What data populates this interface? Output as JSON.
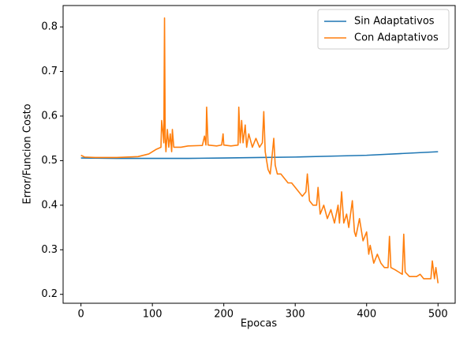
{
  "chart_data": {
    "type": "line",
    "xlabel": "Epocas",
    "ylabel": "Error/Funcion Costo",
    "xlim": [
      -25,
      524
    ],
    "ylim": [
      0.18,
      0.848
    ],
    "xticks": [
      0,
      100,
      200,
      300,
      400,
      500
    ],
    "yticks": [
      0.2,
      0.3,
      0.4,
      0.5,
      0.6,
      0.7,
      0.8
    ],
    "legend": "upper right",
    "grid": false,
    "series": [
      {
        "name": "Sin Adaptativos",
        "color": "#1f77b4",
        "x": [
          0,
          50,
          100,
          150,
          200,
          250,
          300,
          350,
          400,
          450,
          500
        ],
        "values": [
          0.506,
          0.505,
          0.505,
          0.505,
          0.506,
          0.507,
          0.508,
          0.51,
          0.512,
          0.516,
          0.52
        ]
      },
      {
        "name": "Con Adaptativos",
        "color": "#ff7f0e",
        "x": [
          0,
          5,
          20,
          50,
          80,
          95,
          105,
          112,
          113,
          115,
          116,
          117,
          118,
          119,
          121,
          123,
          125,
          127,
          128,
          130,
          140,
          150,
          170,
          173,
          175,
          176,
          178,
          190,
          197,
          199,
          200,
          210,
          220,
          221,
          223,
          225,
          227,
          230,
          232,
          235,
          240,
          245,
          250,
          254,
          256,
          258,
          262,
          265,
          267,
          270,
          272,
          275,
          280,
          285,
          290,
          295,
          300,
          305,
          310,
          315,
          317,
          320,
          325,
          330,
          332,
          335,
          340,
          345,
          350,
          355,
          360,
          362,
          365,
          368,
          372,
          375,
          380,
          383,
          385,
          390,
          395,
          400,
          403,
          405,
          410,
          415,
          420,
          425,
          430,
          432,
          434,
          440,
          445,
          450,
          452,
          454,
          460,
          470,
          475,
          480,
          490,
          492,
          495,
          497,
          500
        ],
        "values": [
          0.512,
          0.508,
          0.507,
          0.507,
          0.509,
          0.515,
          0.525,
          0.53,
          0.59,
          0.56,
          0.54,
          0.82,
          0.55,
          0.52,
          0.57,
          0.53,
          0.56,
          0.52,
          0.57,
          0.53,
          0.53,
          0.533,
          0.534,
          0.555,
          0.535,
          0.62,
          0.535,
          0.533,
          0.535,
          0.56,
          0.535,
          0.533,
          0.535,
          0.62,
          0.54,
          0.59,
          0.54,
          0.58,
          0.53,
          0.56,
          0.53,
          0.55,
          0.53,
          0.54,
          0.61,
          0.52,
          0.48,
          0.47,
          0.5,
          0.55,
          0.49,
          0.47,
          0.47,
          0.46,
          0.45,
          0.45,
          0.44,
          0.43,
          0.42,
          0.43,
          0.47,
          0.41,
          0.4,
          0.4,
          0.44,
          0.38,
          0.4,
          0.37,
          0.39,
          0.36,
          0.4,
          0.36,
          0.43,
          0.36,
          0.38,
          0.35,
          0.41,
          0.34,
          0.33,
          0.37,
          0.32,
          0.34,
          0.29,
          0.31,
          0.27,
          0.29,
          0.27,
          0.26,
          0.26,
          0.33,
          0.26,
          0.255,
          0.25,
          0.245,
          0.335,
          0.25,
          0.24,
          0.24,
          0.245,
          0.235,
          0.235,
          0.275,
          0.235,
          0.26,
          0.225
        ]
      }
    ]
  }
}
